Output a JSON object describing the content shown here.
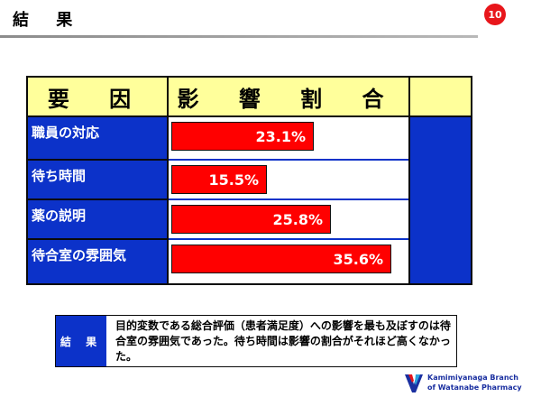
{
  "slide": {
    "title": "結 果",
    "page_number": "10"
  },
  "table": {
    "header_factor": "要 因",
    "header_impact": "影 響 割 合",
    "rows": [
      {
        "factor": "職員の対応",
        "value_label": "23.1%",
        "value": 23.1
      },
      {
        "factor": "待ち時間",
        "value_label": "15.5%",
        "value": 15.5
      },
      {
        "factor": "薬の説明",
        "value_label": "25.8%",
        "value": 25.8
      },
      {
        "factor": "待合室の雰囲気",
        "value_label": "35.6%",
        "value": 35.6
      }
    ],
    "bar_max": 35.6
  },
  "conclusion": {
    "label": "結 果",
    "text": "目的変数である総合評価（患者満足度）への影響を最も及ぼすのは待合室の雰囲気であった。待ち時間は影響の割合がそれほど高くなかった。"
  },
  "brand": {
    "line1": "Kamimiyanaga Branch",
    "line2": "of Watanabe Pharmacy"
  },
  "colors": {
    "table_blue": "#0c32c9",
    "header_yellow": "#ffff9b",
    "bar_red": "#ff0000",
    "badge_red": "#e8161b"
  }
}
